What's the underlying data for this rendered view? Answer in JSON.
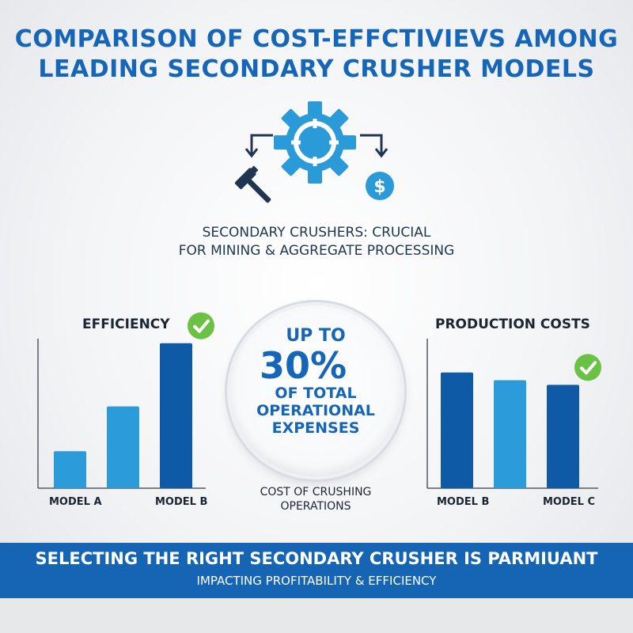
{
  "title_line1": "COMPARISON OF COST-EFFCTIVIEVS AMONG",
  "title_line2": "LEADING SECONDARY CRUSHER MODELS",
  "subtitle_line1": "SECONDARY CRUSHERS: CRUCIAL",
  "subtitle_line2": "FOR MINING & AGGREGATE PROCESSING",
  "center": {
    "line1": "UP TO",
    "percent": "30%",
    "line3": "OF TOTAL",
    "line4": "OPERATIONAL",
    "line5": "EXPENSES",
    "caption1": "COST OF CRUSHING",
    "caption2": "OPERATIONS"
  },
  "banner": {
    "line1": "SELECTING THE RIGHT SECONDARY CRUSHER IS PARMIUANT",
    "line2": "IMPACTING PROFITABILITY & EFFICIENCY"
  },
  "icons": [
    "gear-icon",
    "hammer-icon",
    "dollar-icon",
    "arrow-down-icon",
    "check-icon"
  ],
  "colors": {
    "primary": "#1565b8",
    "dark_blue": "#0e5aa7",
    "light_blue": "#2c9bd9",
    "check_green": "#6bc144"
  },
  "chart_data": [
    {
      "type": "bar",
      "title": "EFFICIENCY",
      "categories": [
        "MODEL A",
        "",
        "MODEL B"
      ],
      "values": [
        24,
        53,
        94
      ],
      "ylim": [
        0,
        100
      ],
      "highlight": 2
    },
    {
      "type": "bar",
      "title": "PRODUCTION COSTS",
      "categories": [
        "MODEL B",
        "",
        "MODEL C"
      ],
      "values": [
        75,
        70,
        67
      ],
      "ylim": [
        0,
        100
      ],
      "highlight": 2
    }
  ]
}
